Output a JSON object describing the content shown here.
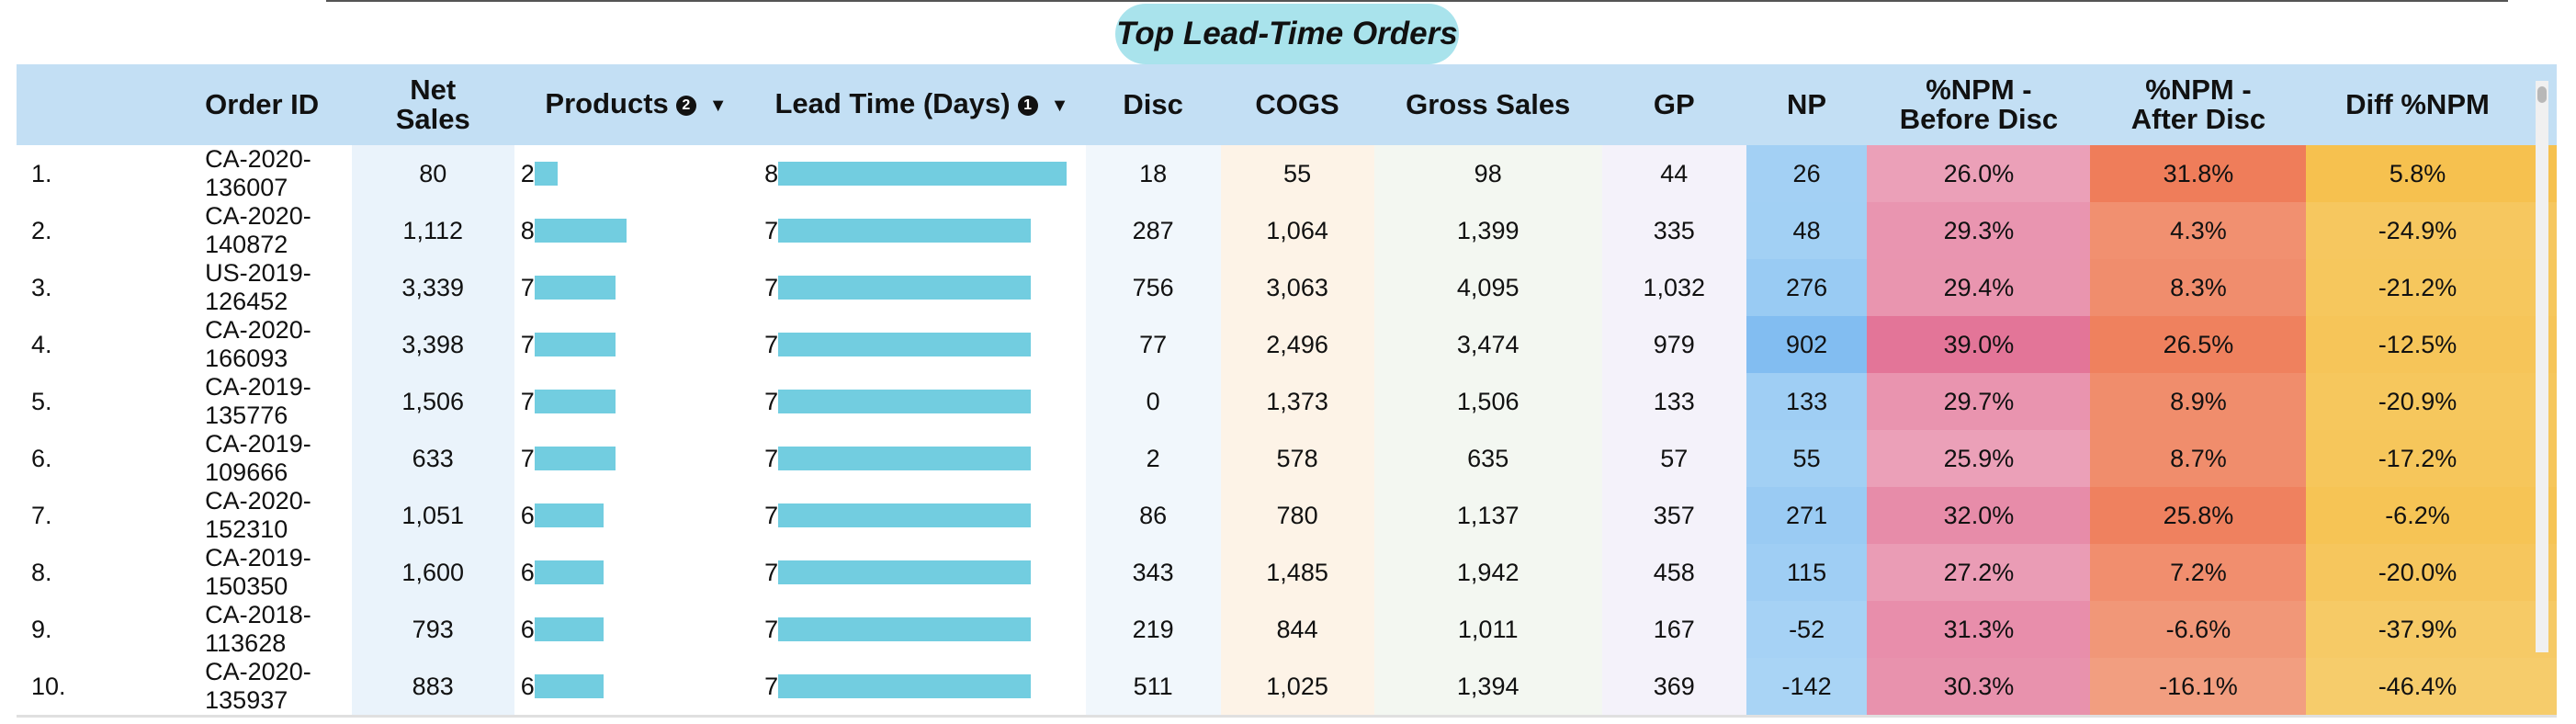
{
  "title": "Top Lead-Time Orders",
  "table": {
    "headers": {
      "order_id": "Order ID",
      "net_sales_1": "Net",
      "net_sales_2": "Sales",
      "products": "Products",
      "products_badge": "2",
      "lead_time": "Lead Time (Days)",
      "lead_time_badge": "1",
      "disc": "Disc",
      "cogs": "COGS",
      "gross_sales": "Gross Sales",
      "gp": "GP",
      "np": "NP",
      "npm_before_1": "%NPM -",
      "npm_before_2": "Before Disc",
      "npm_after_1": "%NPM -",
      "npm_after_2": "After Disc",
      "diff_npm": "Diff %NPM"
    },
    "sort_icon": "caret-down-icon",
    "rows": [
      {
        "idx": "1.",
        "order_id": "CA-2020-136007",
        "net_sales": "80",
        "products": "2",
        "products_value": 2,
        "lead_time": "8",
        "lead_time_value": 8,
        "disc": "18",
        "cogs": "55",
        "gross_sales": "98",
        "gp": "44",
        "np": "26",
        "npm_before": "26.0%",
        "npm_after": "31.8%",
        "diff_npm": "5.8%"
      },
      {
        "idx": "2.",
        "order_id": "CA-2020-140872",
        "net_sales": "1,112",
        "products": "8",
        "products_value": 8,
        "lead_time": "7",
        "lead_time_value": 7,
        "disc": "287",
        "cogs": "1,064",
        "gross_sales": "1,399",
        "gp": "335",
        "np": "48",
        "npm_before": "29.3%",
        "npm_after": "4.3%",
        "diff_npm": "-24.9%"
      },
      {
        "idx": "3.",
        "order_id": "US-2019-126452",
        "net_sales": "3,339",
        "products": "7",
        "products_value": 7,
        "lead_time": "7",
        "lead_time_value": 7,
        "disc": "756",
        "cogs": "3,063",
        "gross_sales": "4,095",
        "gp": "1,032",
        "np": "276",
        "npm_before": "29.4%",
        "npm_after": "8.3%",
        "diff_npm": "-21.2%"
      },
      {
        "idx": "4.",
        "order_id": "CA-2020-166093",
        "net_sales": "3,398",
        "products": "7",
        "products_value": 7,
        "lead_time": "7",
        "lead_time_value": 7,
        "disc": "77",
        "cogs": "2,496",
        "gross_sales": "3,474",
        "gp": "979",
        "np": "902",
        "npm_before": "39.0%",
        "npm_after": "26.5%",
        "diff_npm": "-12.5%"
      },
      {
        "idx": "5.",
        "order_id": "CA-2019-135776",
        "net_sales": "1,506",
        "products": "7",
        "products_value": 7,
        "lead_time": "7",
        "lead_time_value": 7,
        "disc": "0",
        "cogs": "1,373",
        "gross_sales": "1,506",
        "gp": "133",
        "np": "133",
        "npm_before": "29.7%",
        "npm_after": "8.9%",
        "diff_npm": "-20.9%"
      },
      {
        "idx": "6.",
        "order_id": "CA-2019-109666",
        "net_sales": "633",
        "products": "7",
        "products_value": 7,
        "lead_time": "7",
        "lead_time_value": 7,
        "disc": "2",
        "cogs": "578",
        "gross_sales": "635",
        "gp": "57",
        "np": "55",
        "npm_before": "25.9%",
        "npm_after": "8.7%",
        "diff_npm": "-17.2%"
      },
      {
        "idx": "7.",
        "order_id": "CA-2020-152310",
        "net_sales": "1,051",
        "products": "6",
        "products_value": 6,
        "lead_time": "7",
        "lead_time_value": 7,
        "disc": "86",
        "cogs": "780",
        "gross_sales": "1,137",
        "gp": "357",
        "np": "271",
        "npm_before": "32.0%",
        "npm_after": "25.8%",
        "diff_npm": "-6.2%"
      },
      {
        "idx": "8.",
        "order_id": "CA-2019-150350",
        "net_sales": "1,600",
        "products": "6",
        "products_value": 6,
        "lead_time": "7",
        "lead_time_value": 7,
        "disc": "343",
        "cogs": "1,485",
        "gross_sales": "1,942",
        "gp": "458",
        "np": "115",
        "npm_before": "27.2%",
        "npm_after": "7.2%",
        "diff_npm": "-20.0%"
      },
      {
        "idx": "9.",
        "order_id": "CA-2018-113628",
        "net_sales": "793",
        "products": "6",
        "products_value": 6,
        "lead_time": "7",
        "lead_time_value": 7,
        "disc": "219",
        "cogs": "844",
        "gross_sales": "1,011",
        "gp": "167",
        "np": "-52",
        "npm_before": "31.3%",
        "npm_after": "-6.6%",
        "diff_npm": "-37.9%"
      },
      {
        "idx": "10.",
        "order_id": "CA-2020-135937",
        "net_sales": "883",
        "products": "6",
        "products_value": 6,
        "lead_time": "7",
        "lead_time_value": 7,
        "disc": "511",
        "cogs": "1,025",
        "gross_sales": "1,394",
        "gp": "369",
        "np": "-142",
        "npm_before": "30.3%",
        "npm_after": "-16.1%",
        "diff_npm": "-46.4%"
      }
    ]
  },
  "colors": {
    "header_bg": "#c3dff4",
    "title_pill": "#a9e3ec",
    "bar": "#72cde0",
    "net_sales_bg": "#eaf3fb",
    "disc_bg": "#f1f7fc",
    "cogs_bg": "#fdf3e7",
    "gross_sales_bg": "#f3f7f1",
    "gp_bg": "#f4f2fa",
    "np_low": "#a9d4f5",
    "np_high": "#82bdf1",
    "npm_before_low": "#eba0b8",
    "npm_before_high": "#e37598",
    "npm_after_low": "#f29e80",
    "npm_after_high": "#ef7d5a",
    "diff_low": "#f6cc6b",
    "diff_high": "#f6c14f"
  }
}
